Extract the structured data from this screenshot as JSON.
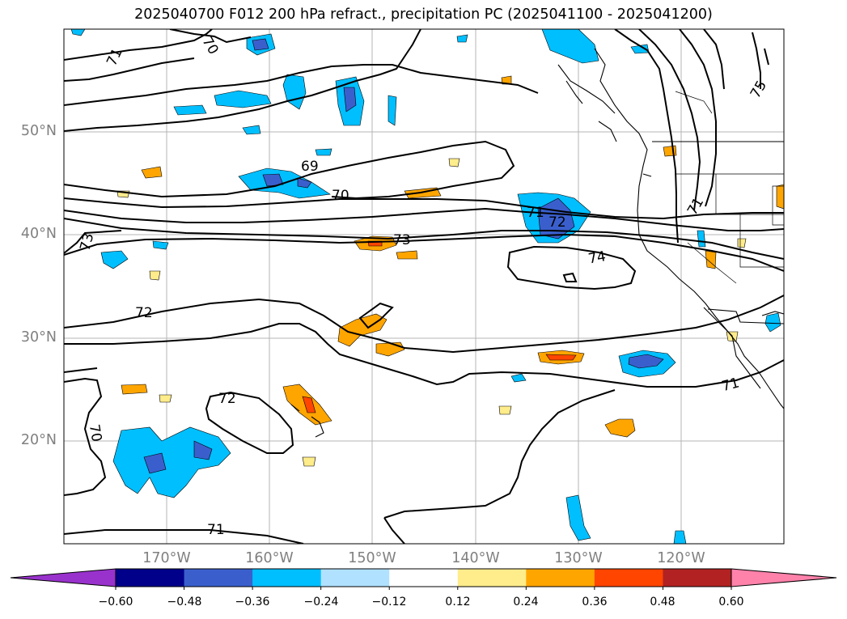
{
  "title": "2025040700 F012 200 hPa refract., precipitation PC (2025041100 - 2025041200)",
  "lat_labels": [
    "50°N",
    "40°N",
    "30°N",
    "20°N"
  ],
  "lon_labels": [
    "170°W",
    "160°W",
    "150°W",
    "140°W",
    "130°W",
    "120°W"
  ],
  "contour_labels": [
    "70",
    "71",
    "69",
    "70",
    "73",
    "71",
    "72",
    "74",
    "72",
    "72",
    "71",
    "70",
    "71",
    "71",
    "73",
    "75"
  ],
  "colorbar": {
    "colors": [
      "#9932cc",
      "#00008b",
      "#3a5fcd",
      "#00bfff",
      "#b0e2ff",
      "#ffffff",
      "#ffec8b",
      "#ffa500",
      "#ff4500",
      "#b22222",
      "#ff82ab"
    ],
    "tick_labels": [
      "−0.60",
      "−0.48",
      "−0.36",
      "−0.24",
      "−0.12",
      "0.12",
      "0.24",
      "0.36",
      "0.48",
      "0.60"
    ]
  }
}
